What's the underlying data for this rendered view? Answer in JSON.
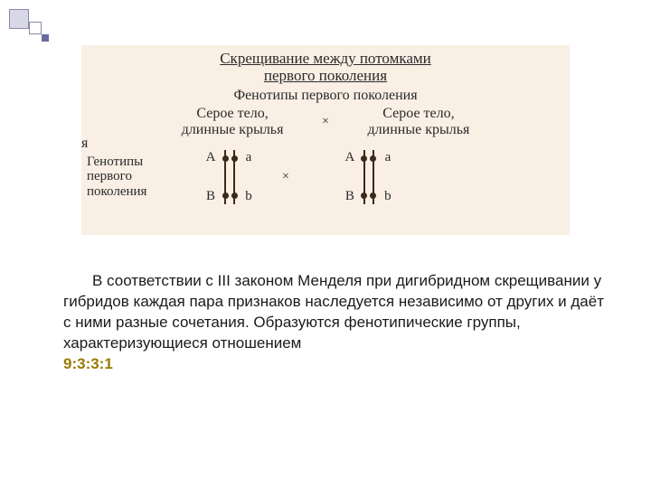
{
  "decoration": {
    "big_sq_bg": "#d8d8e8",
    "big_sq_border": "#8a8aa8",
    "mid_sq_bg": "#ffffff",
    "sm_sq_bg": "#6a6aa0"
  },
  "diagram": {
    "background_color": "#f9efe4",
    "title_line1": "Скрещивание между потомками",
    "title_line2": "первого поколения",
    "subtitle": "Фенотипы первого поколения",
    "stray_left_char": "я",
    "phenotype_left_l1": "Серое тело,",
    "phenotype_left_l2": "длинные крылья",
    "cross_symbol": "×",
    "phenotype_right_l1": "Серое тело,",
    "phenotype_right_l2": "длинные крылья",
    "genotype_label_l1": "Генотипы",
    "genotype_label_l2": "первого",
    "genotype_label_l3": "поколения",
    "alleles": {
      "left_outer_top": "A",
      "left_outer_bot": "B",
      "left_inner_top": "a",
      "left_inner_bot": "b",
      "right_outer_top": "A",
      "right_outer_bot": "B",
      "right_inner_top": "a",
      "right_inner_bot": "b"
    },
    "chromosome_color": "#3a2a1a"
  },
  "paragraph": {
    "text_part1": "В соответствии с III законом Менделя при дигибридном скрещивании у гибридов каждая пара признаков наследуется независимо от других и даёт с ними разные сочетания. Образуются фенотипические группы, характеризующиеся отношением ",
    "ratio": "9:3:3:1",
    "ratio_color": "#9a7a00",
    "font_size": 17,
    "text_color": "#1a1a1a"
  }
}
